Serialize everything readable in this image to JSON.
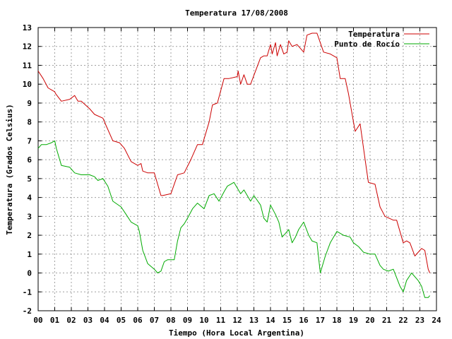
{
  "chart_data": {
    "type": "line",
    "title": "Temperatura 17/08/2008",
    "xlabel": "Tiempo (Hora Local Argentina)",
    "ylabel": "Temperatura (Grados Celsius)",
    "xlim": [
      0,
      24
    ],
    "ylim": [
      -2,
      13
    ],
    "grid": true,
    "legend_position": "top-right",
    "x_tick_labels": [
      "00",
      "01",
      "02",
      "03",
      "04",
      "05",
      "06",
      "07",
      "08",
      "09",
      "10",
      "11",
      "12",
      "13",
      "14",
      "15",
      "16",
      "17",
      "18",
      "19",
      "20",
      "21",
      "22",
      "23",
      "24"
    ],
    "y_tick_labels": [
      "-2",
      "-1",
      "0",
      "1",
      "2",
      "3",
      "4",
      "5",
      "6",
      "7",
      "8",
      "9",
      "10",
      "11",
      "12",
      "13"
    ],
    "series": [
      {
        "name": "Temperatura",
        "color": "#cc0000",
        "x": [
          0,
          0.3,
          0.6,
          1.0,
          1.05,
          1.4,
          1.9,
          2.2,
          2.4,
          2.6,
          3.1,
          3.4,
          3.9,
          4.1,
          4.5,
          4.9,
          5.2,
          5.6,
          6.0,
          6.2,
          6.3,
          6.6,
          7.0,
          7.2,
          7.4,
          7.5,
          8.0,
          8.4,
          8.8,
          9.2,
          9.6,
          9.9,
          10.3,
          10.5,
          10.8,
          11.2,
          11.5,
          12.0,
          12.05,
          12.2,
          12.4,
          12.6,
          12.8,
          13.4,
          13.6,
          13.8,
          14.0,
          14.1,
          14.3,
          14.4,
          14.6,
          14.8,
          15.0,
          15.1,
          15.3,
          15.6,
          16.0,
          16.2,
          16.5,
          16.8,
          17.0,
          17.2,
          17.6,
          18.0,
          18.2,
          18.5,
          18.7,
          19.0,
          19.1,
          19.4,
          19.7,
          19.9,
          20.3,
          20.6,
          20.9,
          21.4,
          21.6,
          22.0,
          22.2,
          22.4,
          22.7,
          23.1,
          23.3,
          23.5,
          23.6
        ],
        "y": [
          10.7,
          10.3,
          9.8,
          9.6,
          9.5,
          9.1,
          9.2,
          9.4,
          9.1,
          9.1,
          8.7,
          8.4,
          8.2,
          7.8,
          7.0,
          6.9,
          6.6,
          5.9,
          5.7,
          5.8,
          5.4,
          5.3,
          5.3,
          4.7,
          4.1,
          4.1,
          4.2,
          5.2,
          5.3,
          6.0,
          6.8,
          6.8,
          8.0,
          8.9,
          9.0,
          10.3,
          10.3,
          10.4,
          10.7,
          10.0,
          10.5,
          10.0,
          10.0,
          11.4,
          11.5,
          11.5,
          12.1,
          11.6,
          12.2,
          11.5,
          12.1,
          11.6,
          11.7,
          12.3,
          12.0,
          12.1,
          11.7,
          12.6,
          12.7,
          12.7,
          12.2,
          11.7,
          11.6,
          11.4,
          10.3,
          10.3,
          9.5,
          8.0,
          7.5,
          7.9,
          6.0,
          4.8,
          4.7,
          3.5,
          3.0,
          2.8,
          2.8,
          1.6,
          1.7,
          1.6,
          0.9,
          1.3,
          1.2,
          0.2,
          0.0
        ]
      },
      {
        "name": "Punto de Rocío",
        "color": "#00aa00",
        "x": [
          0,
          0.2,
          0.5,
          0.8,
          1.0,
          1.1,
          1.4,
          1.9,
          2.2,
          2.6,
          3.1,
          3.4,
          3.6,
          3.9,
          4.2,
          4.5,
          5.0,
          5.3,
          5.6,
          6.0,
          6.1,
          6.3,
          6.6,
          7.0,
          7.2,
          7.4,
          7.6,
          7.8,
          8.2,
          8.4,
          8.6,
          8.8,
          9.0,
          9.3,
          9.6,
          10.0,
          10.3,
          10.6,
          10.9,
          11.2,
          11.4,
          11.6,
          11.8,
          12.0,
          12.2,
          12.4,
          12.6,
          12.8,
          13.0,
          13.4,
          13.6,
          13.8,
          14.0,
          14.3,
          14.5,
          14.7,
          14.9,
          15.1,
          15.3,
          15.5,
          15.7,
          16.0,
          16.3,
          16.5,
          16.8,
          17.0,
          17.3,
          17.6,
          18.0,
          18.4,
          18.8,
          19.0,
          19.3,
          19.6,
          20.0,
          20.3,
          20.6,
          20.8,
          21.1,
          21.4,
          21.8,
          22.0,
          22.2,
          22.5,
          22.9,
          23.1,
          23.3,
          23.5,
          23.6
        ],
        "y": [
          6.6,
          6.8,
          6.8,
          6.9,
          7.0,
          6.6,
          5.7,
          5.6,
          5.3,
          5.2,
          5.2,
          5.1,
          4.9,
          5.0,
          4.6,
          3.8,
          3.5,
          3.1,
          2.7,
          2.5,
          2.2,
          1.2,
          0.5,
          0.2,
          0.0,
          0.1,
          0.6,
          0.7,
          0.7,
          1.7,
          2.4,
          2.6,
          2.9,
          3.4,
          3.7,
          3.4,
          4.1,
          4.2,
          3.8,
          4.3,
          4.6,
          4.7,
          4.8,
          4.5,
          4.2,
          4.4,
          4.1,
          3.8,
          4.1,
          3.6,
          2.9,
          2.7,
          3.6,
          3.1,
          2.7,
          1.9,
          2.1,
          2.3,
          1.6,
          1.9,
          2.3,
          2.7,
          2.0,
          1.7,
          1.6,
          0.0,
          0.9,
          1.6,
          2.2,
          2.0,
          1.9,
          1.6,
          1.4,
          1.1,
          1.0,
          1.0,
          0.4,
          0.2,
          0.1,
          0.2,
          -0.7,
          -1.0,
          -0.4,
          0.0,
          -0.4,
          -0.7,
          -1.3,
          -1.3,
          -1.2
        ]
      }
    ]
  }
}
